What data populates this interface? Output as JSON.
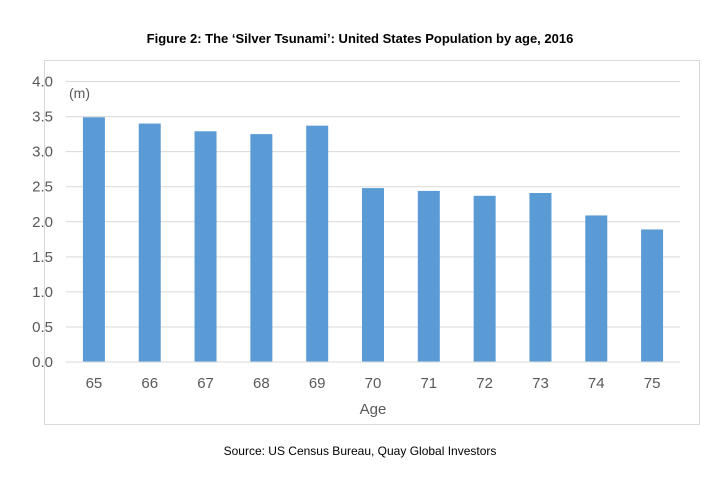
{
  "title": "Figure 2: The ‘Silver Tsunami’: United States Population by age, 2016",
  "source": "Source: US Census Bureau, Quay Global Investors",
  "chart_data": {
    "type": "bar",
    "title": "Figure 2: The ‘Silver Tsunami’: United States Population by age, 2016",
    "xlabel": "Age",
    "ylabel": "",
    "unit_label": "(m)",
    "categories": [
      "65",
      "66",
      "67",
      "68",
      "69",
      "70",
      "71",
      "72",
      "73",
      "74",
      "75"
    ],
    "values": [
      3.49,
      3.4,
      3.29,
      3.25,
      3.37,
      2.48,
      2.44,
      2.37,
      2.41,
      2.09,
      1.89
    ],
    "ylim": [
      0,
      4.0
    ],
    "yticks": [
      "0.0",
      "0.5",
      "1.0",
      "1.5",
      "2.0",
      "2.5",
      "3.0",
      "3.5",
      "4.0"
    ],
    "grid": true,
    "legend": "none",
    "bar_color": "#5b9bd5"
  }
}
